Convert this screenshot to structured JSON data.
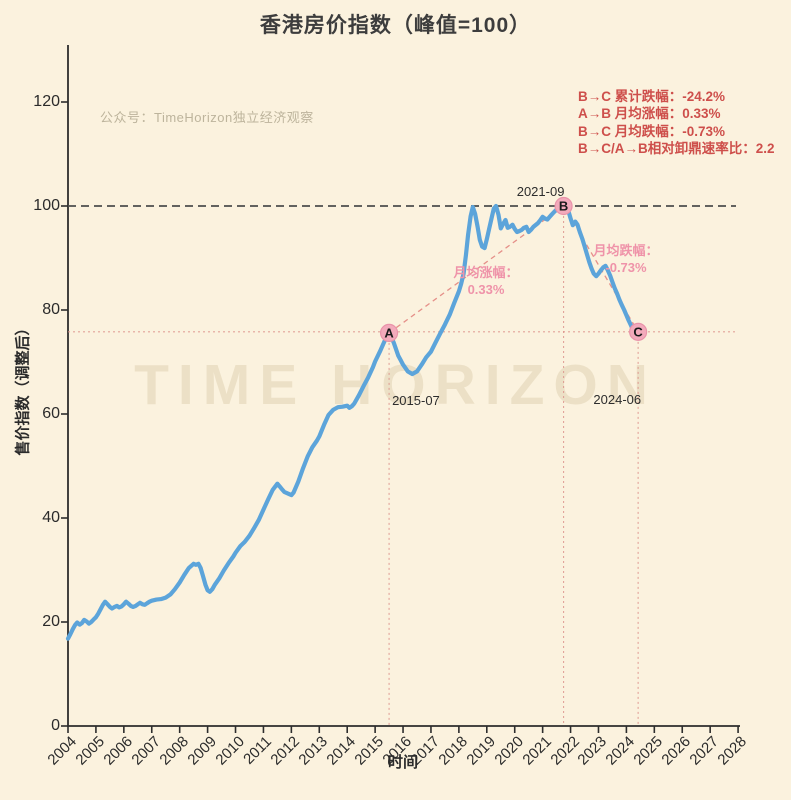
{
  "title": "香港房价指数（峰值=100）",
  "source_label": "公众号：TimeHorizon独立经济观察",
  "watermark": "TIME HORIZON",
  "stats_lines": {
    "line1": "B→C 累计跌幅：-24.2%",
    "line2": "A→B 月均涨幅：0.33%",
    "line3": "B→C 月均跌幅：-0.73%",
    "line4": "B→C/A→B相对卸鼎速率比：2.2"
  },
  "chart_data": {
    "type": "line",
    "title": "香港房价指数（峰值=100）",
    "xlabel": "时间",
    "ylabel": "售价指数（调整后）",
    "x_ticks": [
      2004,
      2005,
      2006,
      2007,
      2008,
      2009,
      2010,
      2011,
      2012,
      2013,
      2014,
      2015,
      2016,
      2017,
      2018,
      2019,
      2020,
      2021,
      2022,
      2023,
      2024,
      2025,
      2026,
      2027,
      2028
    ],
    "y_ticks": [
      0,
      20,
      40,
      60,
      80,
      100,
      120
    ],
    "xlim": [
      2004,
      2028
    ],
    "ylim": [
      0,
      130
    ],
    "grid": false,
    "peak_reference_value": 100,
    "support_reference_value": 75.8,
    "colors": {
      "line": "#5CA4DA",
      "marker_fill": "#F3AABB",
      "marker_edge": "#E993AA",
      "peak_dash": "#4d4d4d",
      "pink_dotted": "#DC8F88",
      "trend_dash": "#E59089",
      "red_text": "#CE4F4B",
      "pink_text": "#EF93A9",
      "background": "#FBF2DE"
    },
    "series": [
      {
        "name": "香港房价指数",
        "points": [
          [
            2004.0,
            16.8
          ],
          [
            2004.08,
            17.6
          ],
          [
            2004.17,
            18.6
          ],
          [
            2004.25,
            19.4
          ],
          [
            2004.33,
            19.9
          ],
          [
            2004.42,
            19.5
          ],
          [
            2004.5,
            19.8
          ],
          [
            2004.58,
            20.4
          ],
          [
            2004.67,
            20.1
          ],
          [
            2004.75,
            19.7
          ],
          [
            2004.83,
            20.0
          ],
          [
            2004.92,
            20.5
          ],
          [
            2005.0,
            20.9
          ],
          [
            2005.08,
            21.6
          ],
          [
            2005.17,
            22.5
          ],
          [
            2005.25,
            23.3
          ],
          [
            2005.33,
            23.9
          ],
          [
            2005.42,
            23.4
          ],
          [
            2005.5,
            22.9
          ],
          [
            2005.58,
            22.6
          ],
          [
            2005.67,
            22.9
          ],
          [
            2005.75,
            23.1
          ],
          [
            2005.83,
            22.8
          ],
          [
            2005.92,
            23.0
          ],
          [
            2006.0,
            23.4
          ],
          [
            2006.08,
            23.9
          ],
          [
            2006.17,
            23.5
          ],
          [
            2006.25,
            23.1
          ],
          [
            2006.33,
            22.9
          ],
          [
            2006.42,
            23.1
          ],
          [
            2006.5,
            23.4
          ],
          [
            2006.58,
            23.7
          ],
          [
            2006.67,
            23.4
          ],
          [
            2006.75,
            23.3
          ],
          [
            2006.83,
            23.6
          ],
          [
            2006.92,
            23.9
          ],
          [
            2007.0,
            24.1
          ],
          [
            2007.17,
            24.3
          ],
          [
            2007.33,
            24.4
          ],
          [
            2007.5,
            24.7
          ],
          [
            2007.67,
            25.3
          ],
          [
            2007.83,
            26.3
          ],
          [
            2008.0,
            27.6
          ],
          [
            2008.17,
            29.1
          ],
          [
            2008.33,
            30.4
          ],
          [
            2008.5,
            31.2
          ],
          [
            2008.58,
            31.0
          ],
          [
            2008.67,
            31.2
          ],
          [
            2008.75,
            30.4
          ],
          [
            2008.83,
            28.9
          ],
          [
            2008.92,
            27.2
          ],
          [
            2009.0,
            26.1
          ],
          [
            2009.08,
            25.8
          ],
          [
            2009.17,
            26.3
          ],
          [
            2009.25,
            27.1
          ],
          [
            2009.42,
            28.4
          ],
          [
            2009.58,
            29.9
          ],
          [
            2009.75,
            31.3
          ],
          [
            2009.92,
            32.6
          ],
          [
            2010.0,
            33.3
          ],
          [
            2010.17,
            34.6
          ],
          [
            2010.33,
            35.4
          ],
          [
            2010.5,
            36.6
          ],
          [
            2010.67,
            38.1
          ],
          [
            2010.83,
            39.6
          ],
          [
            2011.0,
            41.6
          ],
          [
            2011.17,
            43.6
          ],
          [
            2011.33,
            45.4
          ],
          [
            2011.5,
            46.6
          ],
          [
            2011.58,
            46.1
          ],
          [
            2011.67,
            45.5
          ],
          [
            2011.75,
            45.0
          ],
          [
            2011.92,
            44.6
          ],
          [
            2012.0,
            44.4
          ],
          [
            2012.08,
            44.9
          ],
          [
            2012.25,
            47.0
          ],
          [
            2012.42,
            49.6
          ],
          [
            2012.58,
            51.8
          ],
          [
            2012.75,
            53.6
          ],
          [
            2012.92,
            54.9
          ],
          [
            2013.0,
            55.7
          ],
          [
            2013.17,
            57.9
          ],
          [
            2013.33,
            59.8
          ],
          [
            2013.5,
            60.8
          ],
          [
            2013.67,
            61.3
          ],
          [
            2013.83,
            61.4
          ],
          [
            2014.0,
            61.6
          ],
          [
            2014.08,
            61.2
          ],
          [
            2014.17,
            61.5
          ],
          [
            2014.25,
            62.0
          ],
          [
            2014.42,
            63.6
          ],
          [
            2014.58,
            65.3
          ],
          [
            2014.75,
            67.0
          ],
          [
            2014.92,
            69.0
          ],
          [
            2015.0,
            70.1
          ],
          [
            2015.17,
            72.0
          ],
          [
            2015.33,
            73.9
          ],
          [
            2015.42,
            74.9
          ],
          [
            2015.5,
            75.6
          ],
          [
            2015.58,
            74.8
          ],
          [
            2015.67,
            73.7
          ],
          [
            2015.83,
            71.2
          ],
          [
            2015.92,
            70.3
          ],
          [
            2016.0,
            69.5
          ],
          [
            2016.17,
            68.2
          ],
          [
            2016.33,
            67.7
          ],
          [
            2016.5,
            68.2
          ],
          [
            2016.67,
            69.5
          ],
          [
            2016.83,
            70.9
          ],
          [
            2017.0,
            72.0
          ],
          [
            2017.17,
            73.8
          ],
          [
            2017.33,
            75.5
          ],
          [
            2017.5,
            77.2
          ],
          [
            2017.67,
            79.1
          ],
          [
            2017.83,
            81.3
          ],
          [
            2018.0,
            83.6
          ],
          [
            2018.08,
            85.0
          ],
          [
            2018.17,
            87.0
          ],
          [
            2018.25,
            90.5
          ],
          [
            2018.33,
            94.5
          ],
          [
            2018.42,
            98.0
          ],
          [
            2018.5,
            99.8
          ],
          [
            2018.58,
            98.5
          ],
          [
            2018.67,
            96.0
          ],
          [
            2018.75,
            93.5
          ],
          [
            2018.83,
            92.2
          ],
          [
            2018.92,
            91.9
          ],
          [
            2019.0,
            93.6
          ],
          [
            2019.08,
            95.5
          ],
          [
            2019.17,
            97.6
          ],
          [
            2019.25,
            99.5
          ],
          [
            2019.33,
            100.0
          ],
          [
            2019.42,
            98.3
          ],
          [
            2019.5,
            95.7
          ],
          [
            2019.58,
            96.5
          ],
          [
            2019.67,
            97.3
          ],
          [
            2019.75,
            95.8
          ],
          [
            2019.83,
            96.0
          ],
          [
            2019.92,
            96.4
          ],
          [
            2020.0,
            95.6
          ],
          [
            2020.08,
            95.0
          ],
          [
            2020.17,
            95.2
          ],
          [
            2020.25,
            95.4
          ],
          [
            2020.33,
            95.8
          ],
          [
            2020.42,
            96.0
          ],
          [
            2020.5,
            95.0
          ],
          [
            2020.58,
            95.4
          ],
          [
            2020.67,
            96.0
          ],
          [
            2020.83,
            96.7
          ],
          [
            2020.92,
            97.3
          ],
          [
            2021.0,
            97.9
          ],
          [
            2021.08,
            97.6
          ],
          [
            2021.17,
            97.4
          ],
          [
            2021.25,
            97.9
          ],
          [
            2021.33,
            98.4
          ],
          [
            2021.42,
            98.9
          ],
          [
            2021.5,
            99.3
          ],
          [
            2021.58,
            99.6
          ],
          [
            2021.67,
            99.9
          ],
          [
            2021.75,
            100.0
          ],
          [
            2021.83,
            99.6
          ],
          [
            2021.92,
            99.1
          ],
          [
            2022.0,
            97.6
          ],
          [
            2022.08,
            96.3
          ],
          [
            2022.17,
            97.0
          ],
          [
            2022.25,
            96.4
          ],
          [
            2022.33,
            95.0
          ],
          [
            2022.42,
            93.7
          ],
          [
            2022.5,
            92.3
          ],
          [
            2022.58,
            90.8
          ],
          [
            2022.67,
            89.2
          ],
          [
            2022.75,
            88.0
          ],
          [
            2022.83,
            87.0
          ],
          [
            2022.92,
            86.5
          ],
          [
            2023.0,
            87.0
          ],
          [
            2023.08,
            87.6
          ],
          [
            2023.17,
            88.2
          ],
          [
            2023.25,
            88.5
          ],
          [
            2023.33,
            87.7
          ],
          [
            2023.42,
            86.6
          ],
          [
            2023.5,
            85.4
          ],
          [
            2023.58,
            84.2
          ],
          [
            2023.67,
            83.1
          ],
          [
            2023.75,
            82.0
          ],
          [
            2023.83,
            81.0
          ],
          [
            2023.92,
            80.0
          ],
          [
            2024.0,
            79.0
          ],
          [
            2024.08,
            78.0
          ],
          [
            2024.17,
            77.0
          ],
          [
            2024.25,
            76.0
          ],
          [
            2024.33,
            75.2
          ],
          [
            2024.42,
            75.8
          ]
        ]
      }
    ],
    "annotations": {
      "points": [
        {
          "id": "A",
          "date": "2015-07",
          "x": 2015.5,
          "value": 75.6
        },
        {
          "id": "B",
          "date": "2021-09",
          "x": 2021.75,
          "value": 100.0
        },
        {
          "id": "C",
          "date": "2024-06",
          "x": 2024.42,
          "value": 75.8
        }
      ],
      "trend_labels": [
        {
          "line1": "月均涨幅：",
          "line2": "0.33%"
        },
        {
          "line1": "月均跌幅：",
          "line2": "-0.73%"
        }
      ]
    }
  }
}
